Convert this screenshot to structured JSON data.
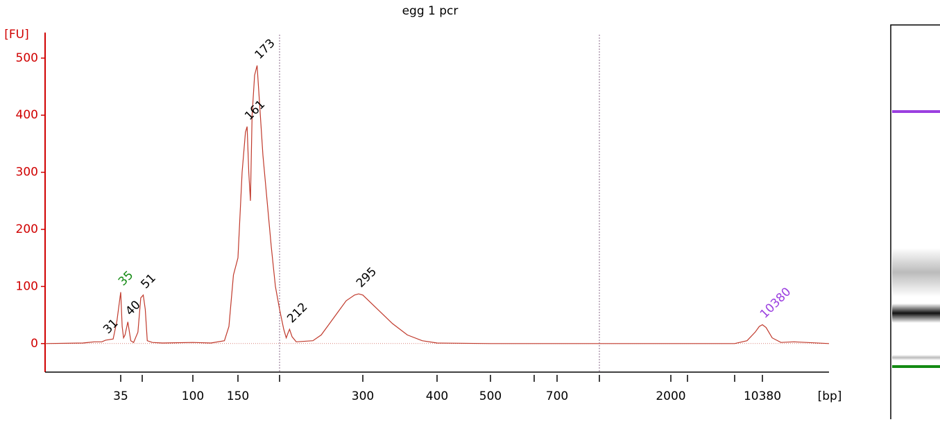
{
  "chart_data": {
    "type": "line",
    "title": "egg 1 pcr",
    "ylabel": "[FU]",
    "xlabel": "[bp]",
    "ylim": [
      -50,
      535
    ],
    "yticks": [
      0,
      100,
      200,
      300,
      400,
      500
    ],
    "xlim": [
      15,
      18000
    ],
    "xticks": [
      35,
      100,
      150,
      300,
      400,
      500,
      700,
      2000,
      10380
    ],
    "xminorticks": [
      50,
      200,
      600,
      1000,
      3000,
      7000
    ],
    "region_lines": [
      200,
      1000
    ],
    "series": [
      {
        "name": "egg 1 pcr",
        "color": "#c0392b",
        "x": [
          15,
          25,
          28,
          30,
          31,
          33,
          34,
          35,
          36,
          37,
          38,
          40,
          42,
          44,
          47,
          49,
          51,
          53,
          55,
          60,
          70,
          100,
          120,
          135,
          140,
          145,
          150,
          155,
          159,
          161,
          163,
          165,
          167,
          170,
          173,
          176,
          180,
          185,
          190,
          195,
          200,
          205,
          208,
          210,
          212,
          215,
          220,
          240,
          250,
          260,
          270,
          280,
          290,
          295,
          300,
          320,
          340,
          360,
          380,
          400,
          500,
          700,
          3000,
          7000,
          8500,
          9500,
          10000,
          10380,
          10800,
          11500,
          12500,
          14000,
          18000
        ],
        "values": [
          0,
          1,
          3,
          3,
          6,
          8,
          40,
          90,
          30,
          10,
          15,
          38,
          5,
          2,
          20,
          80,
          85,
          60,
          5,
          2,
          1,
          2,
          1,
          5,
          30,
          120,
          150,
          300,
          370,
          380,
          300,
          250,
          400,
          470,
          487,
          420,
          330,
          250,
          170,
          100,
          60,
          25,
          10,
          18,
          25,
          12,
          3,
          5,
          15,
          35,
          55,
          75,
          85,
          87,
          85,
          60,
          35,
          15,
          5,
          1,
          0,
          0,
          0,
          0,
          5,
          20,
          30,
          33,
          28,
          10,
          2,
          3,
          0
        ]
      }
    ],
    "peaks": {
      "x": [
        31,
        35,
        40,
        51,
        161,
        173,
        212,
        295,
        10380
      ],
      "y": [
        6,
        90,
        38,
        85,
        380,
        487,
        25,
        87,
        33
      ],
      "colors": [
        "#000000",
        "#138a13",
        "#000000",
        "#000000",
        "#000000",
        "#000000",
        "#000000",
        "#000000",
        "#9b3fe0"
      ]
    }
  }
}
